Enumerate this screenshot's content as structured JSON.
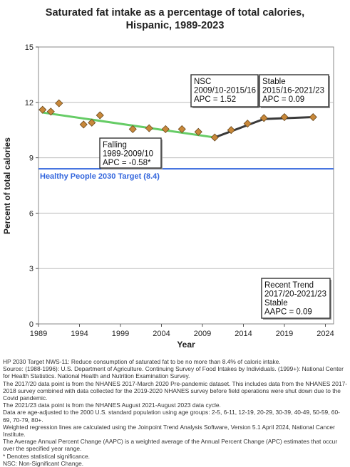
{
  "title_line1": "Saturated fat intake as a percentage of total calories,",
  "title_line2": "Hispanic,  1989-2023",
  "chart_data": {
    "type": "line",
    "xlabel": "Year",
    "ylabel": "Percent of total calories",
    "xlim": [
      1989,
      2025
    ],
    "ylim": [
      0,
      15
    ],
    "xticks": [
      1989,
      1994,
      1999,
      2004,
      2009,
      2014,
      2019,
      2024
    ],
    "yticks": [
      0,
      3,
      6,
      9,
      12,
      15
    ],
    "grid": "horizontal",
    "points": {
      "x": [
        1989.5,
        1990.5,
        1991.5,
        1994.5,
        1995.5,
        1996.5,
        2000.5,
        2002.5,
        2004.5,
        2006.5,
        2008.5,
        2010.5,
        2012.5,
        2014.5,
        2016.5,
        2019.0,
        2022.5
      ],
      "y": [
        11.6,
        11.5,
        11.95,
        10.8,
        10.9,
        11.3,
        10.55,
        10.6,
        10.55,
        10.55,
        10.4,
        10.1,
        10.5,
        10.85,
        11.15,
        11.2,
        11.2
      ]
    },
    "trend_segments": [
      {
        "x": [
          1989.5,
          2010.5
        ],
        "y": [
          11.45,
          10.1
        ],
        "color": "#66cc66"
      },
      {
        "x": [
          2010.5,
          2016.5
        ],
        "y": [
          10.1,
          11.1
        ],
        "color": "#3a3a3a"
      },
      {
        "x": [
          2016.5,
          2022.5
        ],
        "y": [
          11.1,
          11.2
        ],
        "color": "#3a3a3a"
      }
    ],
    "target": {
      "value": 8.4,
      "label": "Healthy People 2030 Target (8.4)",
      "color": "#3366dd"
    },
    "annotations": [
      {
        "lines": [
          "Falling",
          "1989-2009/10",
          "APC = -0.58*"
        ]
      },
      {
        "lines": [
          "NSC",
          "2009/10-2015/16",
          "APC =  1.52"
        ]
      },
      {
        "lines": [
          "Stable",
          "2015/16-2021/23",
          "APC =  0.09"
        ]
      },
      {
        "lines": [
          "Recent Trend",
          "2017/20-2021/23",
          "Stable",
          "AAPC =  0.09"
        ]
      }
    ],
    "colors": {
      "marker_fill": "#c8883a",
      "marker_stroke": "#6b4a1e",
      "grid": "#bdbdbd",
      "frame": "#888888",
      "panel": "#ffffff"
    }
  },
  "footnotes": [
    "HP 2030 Target NWS-11: Reduce consumption of saturated fat to be no more than 8.4% of caloric intake.",
    "Source: (1988-1996): U.S. Department of Agriculture. Continuing Survey of Food Intakes by Individuals. (1999+): National Center for Health Statistics. National Health and Nutrition Examination Survey.",
    "The 2017/20 data point is from the NHANES 2017-March 2020 Pre-pandemic dataset. This includes data from the NHANES 2017-2018 survey combined with data collected for the 2019-2020 NHANES survey before field operations were shut down due to the Covid pandemic.",
    "The 2021/23 data point is from the NHANES August 2021-August 2023 data cycle.",
    "Data are age-adjusted to the 2000 U.S. standard population using age groups: 2-5, 6-11, 12-19, 20-29, 30-39, 40-49, 50-59, 60-69, 70-79, 80+.",
    "Weighted regression lines are calculated using the Joinpoint Trend Analysis Software, Version 5.1 April 2024, National Cancer Institute.",
    "The Average Annual Percent Change (AAPC) is a weighted average of the Annual Percent Change (APC) estimates that occur over the specified year range.",
    "* Denotes statistical significance.",
    "NSC: Non-Significant Change."
  ]
}
